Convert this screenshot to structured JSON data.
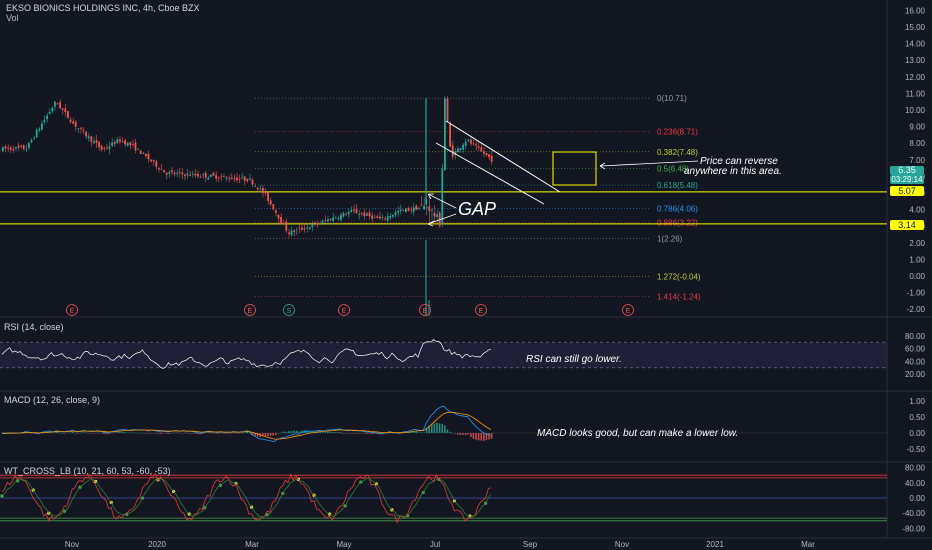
{
  "header": {
    "symbol_line": "EKSO BIONICS HOLDINGS INC, 4h, Cboe BZX",
    "vol_label": "Vol"
  },
  "price_axis": {
    "ticks": [
      "16.00",
      "15.00",
      "14.00",
      "13.00",
      "12.00",
      "11.00",
      "10.00",
      "9.00",
      "8.00",
      "7.00",
      "6.00",
      "5.00",
      "4.00",
      "3.00",
      "2.00",
      "1.00",
      "0.00",
      "-1.00",
      "-2.00"
    ],
    "tick_values": [
      16,
      15,
      14,
      13,
      12,
      11,
      10,
      9,
      8,
      7,
      6,
      5,
      4,
      3,
      2,
      1,
      0,
      -1,
      -2
    ],
    "last_price": "6.35",
    "countdown": "03:29:14",
    "level_upper": "5.07",
    "level_lower": "3.14"
  },
  "rsi_axis": {
    "ticks": [
      "80.00",
      "60.00",
      "40.00",
      "20.00"
    ],
    "tick_values": [
      80,
      60,
      40,
      20
    ]
  },
  "macd_axis": {
    "ticks": [
      "1.00",
      "0.50",
      "0.00",
      "-0.50"
    ],
    "tick_values": [
      1,
      0.5,
      0,
      -0.5
    ]
  },
  "wt_axis": {
    "ticks": [
      "80.00",
      "40.00",
      "0.00",
      "-40.00",
      "-80.00"
    ],
    "tick_values": [
      80,
      40,
      0,
      -40,
      -80
    ]
  },
  "time_axis": {
    "labels": [
      "Nov",
      "2020",
      "Mar",
      "May",
      "Jul",
      "Sep",
      "Nov",
      "2021",
      "Mar"
    ]
  },
  "fib_levels": [
    {
      "label": "0(10.71)",
      "value": 10.71,
      "color": "#9598a1"
    },
    {
      "label": "0.236(8.71)",
      "value": 8.71,
      "color": "#f23645"
    },
    {
      "label": "0.382(7.48)",
      "value": 7.48,
      "color": "#c0ca33"
    },
    {
      "label": "0.5(6.48)",
      "value": 6.48,
      "color": "#4caf50"
    },
    {
      "label": "0.618(5.48)",
      "value": 5.48,
      "color": "#26a69a"
    },
    {
      "label": "0.786(4.06)",
      "value": 4.06,
      "color": "#2196f3"
    },
    {
      "label": "0.886(3.22)",
      "value": 3.22,
      "color": "#f23645"
    },
    {
      "label": "1(2.26)",
      "value": 2.26,
      "color": "#9598a1"
    },
    {
      "label": "1.272(-0.04)",
      "value": -0.04,
      "color": "#c0ca33"
    },
    {
      "label": "1.414(-1.24)",
      "value": -1.24,
      "color": "#f23645"
    }
  ],
  "annotations": {
    "gap": "GAP",
    "reverse_line1": "Price can reverse",
    "reverse_line2": "anywhere in this area.",
    "rsi_note": "RSI can still go lower.",
    "macd_note": "MACD looks good, but can make a lower low."
  },
  "indicators": {
    "rsi_title": "RSI (14, close)",
    "macd_title": "MACD (12, 26, close, 9)",
    "wt_title": "WT_CROSS_LB (10, 21, 60, 53, -60, -53)"
  },
  "events": [
    "E",
    "E",
    "S",
    "E",
    "E",
    "E",
    "E"
  ],
  "colors": {
    "background": "#131722",
    "up": "#26a69a",
    "down": "#ef5350",
    "level_line": "#ffff00",
    "rsi_line": "#ffffff",
    "macd_line": "#2196f3",
    "signal_line": "#ff9800",
    "wt1": "#e53935",
    "wt2": "#2e7d32"
  },
  "chart_data": {
    "type": "candlestick",
    "title": "EKSO BIONICS HOLDINGS INC, 4h, Cboe BZX",
    "xlabel": "",
    "ylabel": "",
    "ylim": [
      -2.3,
      16.6
    ],
    "x_range": [
      "Sep 2019",
      "Apr 2021"
    ],
    "price_path": [
      {
        "x": "2019-09",
        "y": 7.6
      },
      {
        "x": "2019-10",
        "y": 7.7
      },
      {
        "x": "2019-10-20",
        "y": 10.5
      },
      {
        "x": "2019-11",
        "y": 9.2
      },
      {
        "x": "2019-11-20",
        "y": 7.6
      },
      {
        "x": "2019-12",
        "y": 8.2
      },
      {
        "x": "2019-12-10",
        "y": 7.8
      },
      {
        "x": "2020-01",
        "y": 6.2
      },
      {
        "x": "2020-02",
        "y": 6.0
      },
      {
        "x": "2020-02-25",
        "y": 5.8
      },
      {
        "x": "2020-03-05",
        "y": 4.9
      },
      {
        "x": "2020-03-20",
        "y": 2.6
      },
      {
        "x": "2020-04",
        "y": 2.9
      },
      {
        "x": "2020-05",
        "y": 3.9
      },
      {
        "x": "2020-05-20",
        "y": 3.4
      },
      {
        "x": "2020-06",
        "y": 3.9
      },
      {
        "x": "2020-06-20",
        "y": 4.2
      },
      {
        "x": "2020-06-28",
        "y": 3.2
      },
      {
        "x": "2020-07-01",
        "y": 10.7
      },
      {
        "x": "2020-07-05",
        "y": 7.2
      },
      {
        "x": "2020-07-15",
        "y": 8.2
      },
      {
        "x": "2020-08-10",
        "y": 6.35
      }
    ],
    "horizontal_levels": [
      5.07,
      3.14
    ],
    "annotations": [
      "GAP",
      "Price can reverse anywhere in this area."
    ]
  }
}
